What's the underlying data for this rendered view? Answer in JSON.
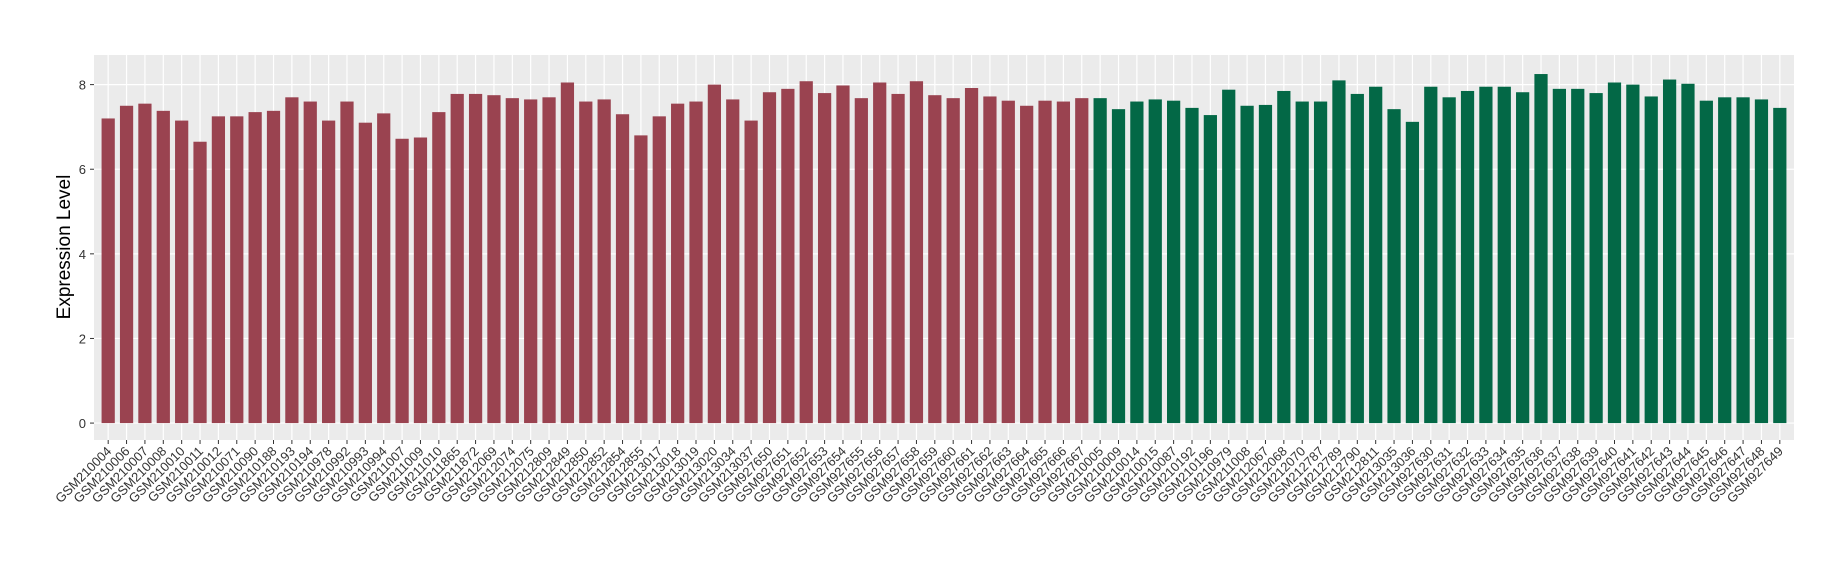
{
  "chart_data": {
    "type": "bar",
    "y_label": "Expression Level",
    "categories": [
      "GSM210004",
      "GSM210006",
      "GSM210007",
      "GSM210008",
      "GSM210010",
      "GSM210011",
      "GSM210012",
      "GSM210071",
      "GSM210090",
      "GSM210188",
      "GSM210193",
      "GSM210194",
      "GSM210978",
      "GSM210992",
      "GSM210993",
      "GSM210994",
      "GSM211007",
      "GSM211009",
      "GSM211010",
      "GSM211865",
      "GSM211872",
      "GSM212069",
      "GSM212074",
      "GSM212075",
      "GSM212809",
      "GSM212849",
      "GSM212850",
      "GSM212852",
      "GSM212854",
      "GSM212855",
      "GSM213017",
      "GSM213018",
      "GSM213019",
      "GSM213020",
      "GSM213034",
      "GSM213037",
      "GSM927650",
      "GSM927651",
      "GSM927652",
      "GSM927653",
      "GSM927654",
      "GSM927655",
      "GSM927656",
      "GSM927657",
      "GSM927658",
      "GSM927659",
      "GSM927660",
      "GSM927661",
      "GSM927662",
      "GSM927663",
      "GSM927664",
      "GSM927665",
      "GSM927666",
      "GSM927667",
      "GSM210005",
      "GSM210009",
      "GSM210014",
      "GSM210015",
      "GSM210087",
      "GSM210192",
      "GSM210196",
      "GSM210979",
      "GSM211008",
      "GSM212067",
      "GSM212068",
      "GSM212070",
      "GSM212787",
      "GSM212789",
      "GSM212790",
      "GSM212811",
      "GSM213035",
      "GSM213036",
      "GSM927630",
      "GSM927631",
      "GSM927632",
      "GSM927633",
      "GSM927634",
      "GSM927635",
      "GSM927636",
      "GSM927637",
      "GSM927638",
      "GSM927639",
      "GSM927640",
      "GSM927641",
      "GSM927642",
      "GSM927643",
      "GSM927644",
      "GSM927645",
      "GSM927646",
      "GSM927647",
      "GSM927648",
      "GSM927649"
    ],
    "series": [
      {
        "color": "#9a4350",
        "values": [
          7.2,
          7.5,
          7.55,
          7.38,
          7.15,
          6.65,
          7.25,
          7.25,
          7.35,
          7.38,
          7.7,
          7.6,
          7.15,
          7.6,
          7.1,
          7.32,
          6.72,
          6.75,
          7.35,
          7.78,
          7.78,
          7.75,
          7.68,
          7.65,
          7.7,
          8.05,
          7.6,
          7.65,
          7.3,
          6.8,
          7.25,
          7.55,
          7.6,
          8.0,
          7.65,
          7.15,
          7.82,
          7.9,
          8.08,
          7.8,
          7.98,
          7.68,
          8.05,
          7.78,
          8.08,
          7.75,
          7.68,
          7.92,
          7.72,
          7.62,
          7.5,
          7.62,
          7.6,
          7.68,
          null,
          null,
          null,
          null,
          null,
          null,
          null,
          null,
          null,
          null,
          null,
          null,
          null,
          null,
          null,
          null,
          null,
          null,
          null,
          null,
          null,
          null,
          null,
          null,
          null,
          null,
          null,
          null,
          null,
          null,
          null,
          null,
          null,
          null,
          null,
          null,
          null,
          null
        ]
      },
      {
        "color": "#036846",
        "values": [
          null,
          null,
          null,
          null,
          null,
          null,
          null,
          null,
          null,
          null,
          null,
          null,
          null,
          null,
          null,
          null,
          null,
          null,
          null,
          null,
          null,
          null,
          null,
          null,
          null,
          null,
          null,
          null,
          null,
          null,
          null,
          null,
          null,
          null,
          null,
          null,
          null,
          null,
          null,
          null,
          null,
          null,
          null,
          null,
          null,
          null,
          null,
          null,
          null,
          null,
          null,
          null,
          null,
          null,
          7.68,
          7.42,
          7.6,
          7.65,
          7.62,
          7.45,
          7.28,
          7.88,
          7.5,
          7.52,
          7.85,
          7.6,
          7.6,
          8.1,
          7.78,
          7.95,
          7.42,
          7.12,
          7.95,
          7.7,
          7.85,
          7.95,
          7.95,
          7.82,
          8.25,
          7.9,
          7.9,
          7.8,
          8.05,
          8.0,
          7.72,
          8.12,
          8.02,
          7.62,
          7.7,
          7.7,
          7.65,
          7.45
        ]
      }
    ],
    "ylim": [
      -0.4,
      8.7
    ],
    "yticks": [
      0,
      2,
      4,
      6,
      8
    ],
    "grid": true
  }
}
